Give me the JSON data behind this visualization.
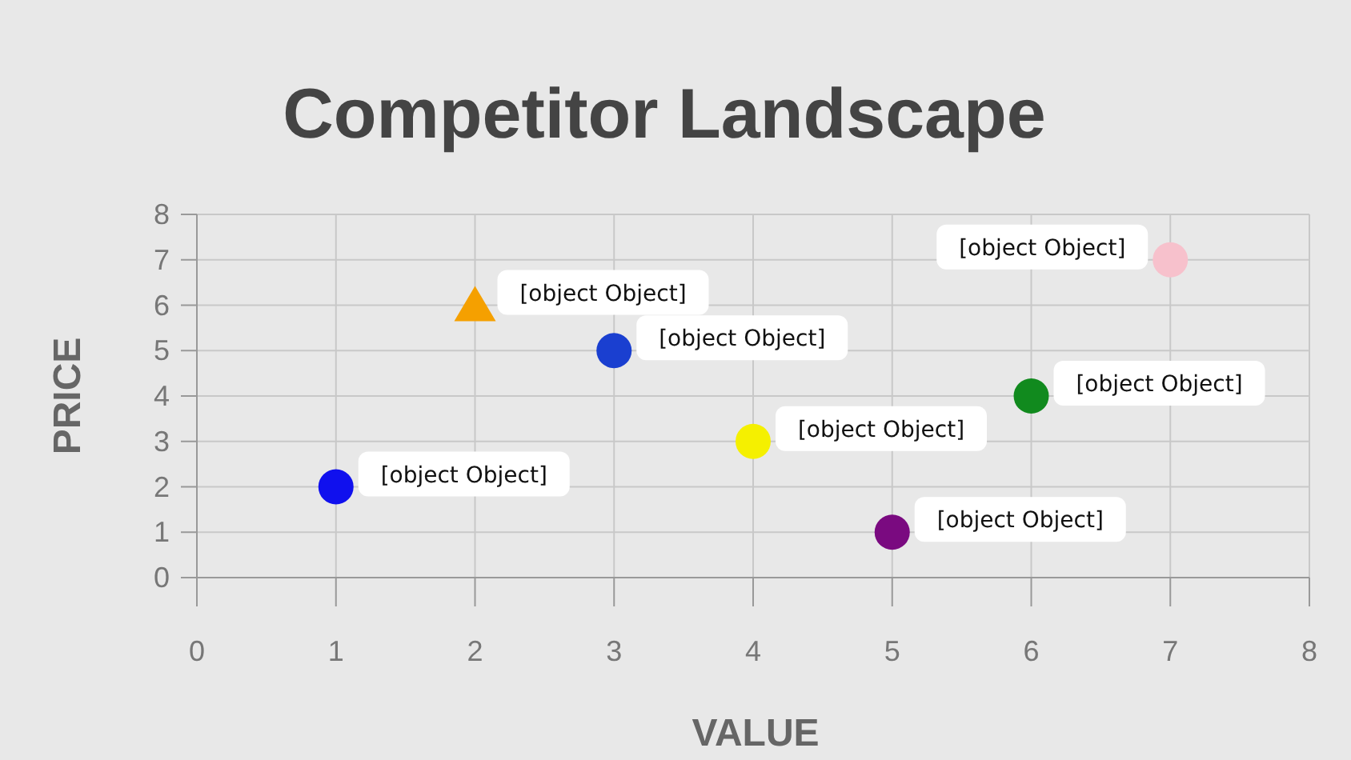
{
  "chart_data": {
    "type": "scatter",
    "title": "Competitor Landscape",
    "xlabel": "VALUE",
    "ylabel": "PRICE",
    "xlim": [
      0,
      8
    ],
    "ylim": [
      0,
      8
    ],
    "xticks": [
      0,
      1,
      2,
      3,
      4,
      5,
      6,
      7,
      8
    ],
    "yticks": [
      0,
      1,
      2,
      3,
      4,
      5,
      6,
      7,
      8
    ],
    "grid": true,
    "series": [
      {
        "marker": "circle",
        "x": [
          1,
          3,
          4,
          5,
          6,
          7
        ],
        "values": [
          2,
          5,
          3,
          1,
          4,
          7
        ],
        "colors": [
          "#1010ee",
          "#1a3fd0",
          "#f5f000",
          "#7a0a80",
          "#118a1e",
          "#f7c1cc"
        ],
        "value_labels": [
          "[object Object]",
          "[object Object]",
          "[object Object]",
          "[object Object]",
          "[object Object]",
          "[object Object]"
        ]
      },
      {
        "marker": "triangle",
        "x": [
          2
        ],
        "values": [
          6
        ],
        "colors": [
          "#f5a000"
        ],
        "value_labels": [
          "[object Object]"
        ]
      }
    ]
  }
}
